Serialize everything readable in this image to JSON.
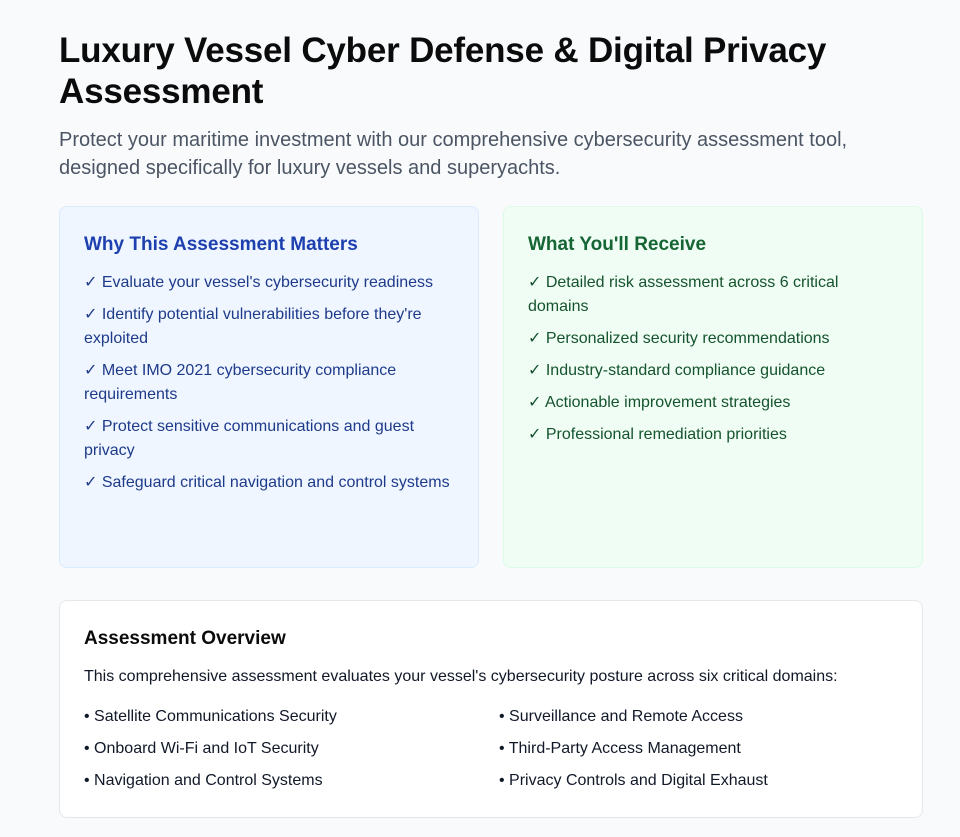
{
  "title": "Luxury Vessel Cyber Defense & Digital Privacy Assessment",
  "subtitle": "Protect your maritime investment with our comprehensive cybersecurity assessment tool, designed specifically for luxury vessels and superyachts.",
  "why": {
    "heading": "Why This Assessment Matters",
    "items": [
      "✓ Evaluate your vessel's cybersecurity readiness",
      "✓ Identify potential vulnerabilities before they're exploited",
      "✓ Meet IMO 2021 cybersecurity compliance requirements",
      "✓ Protect sensitive communications and guest privacy",
      "✓ Safeguard critical navigation and control systems"
    ]
  },
  "receive": {
    "heading": "What You'll Receive",
    "items": [
      "✓ Detailed risk assessment across 6 critical domains",
      "✓ Personalized security recommendations",
      "✓ Industry-standard compliance guidance",
      "✓ Actionable improvement strategies",
      "✓ Professional remediation priorities"
    ]
  },
  "overview": {
    "heading": "Assessment Overview",
    "description": "This comprehensive assessment evaluates your vessel's cybersecurity posture across six critical domains:",
    "domains": [
      "• Satellite Communications Security",
      "• Surveillance and Remote Access",
      "• Onboard Wi-Fi and IoT Security",
      "• Third-Party Access Management",
      "• Navigation and Control Systems",
      "• Privacy Controls and Digital Exhaust"
    ]
  }
}
